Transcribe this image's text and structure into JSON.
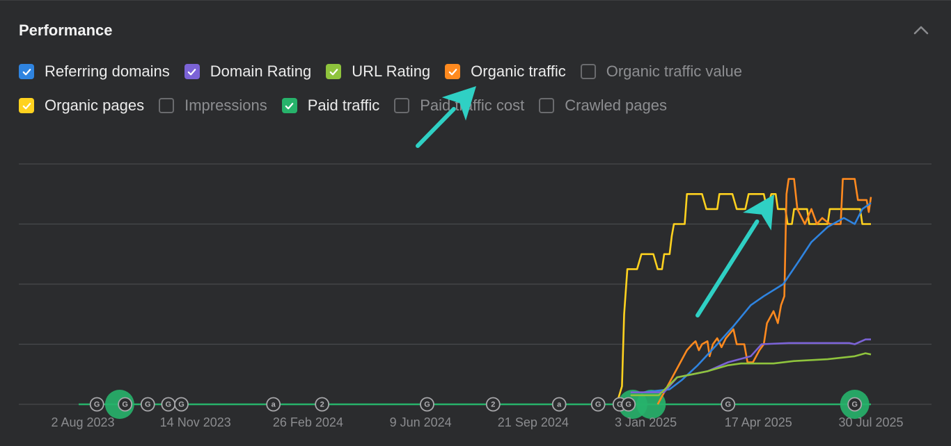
{
  "panel": {
    "title": "Performance"
  },
  "colors": {
    "referring_domains": "#2f84e0",
    "domain_rating": "#7b63d6",
    "url_rating": "#8fc43d",
    "organic_traffic": "#ff8a1f",
    "organic_pages": "#ffd21f",
    "paid_traffic": "#27b36b",
    "annotation_arrow": "#2fd0c4"
  },
  "checkboxes": [
    {
      "id": "referring-domains",
      "label": "Referring domains",
      "checked": true,
      "color": "#2f84e0"
    },
    {
      "id": "domain-rating",
      "label": "Domain Rating",
      "checked": true,
      "color": "#7b63d6"
    },
    {
      "id": "url-rating",
      "label": "URL Rating",
      "checked": true,
      "color": "#8fc43d"
    },
    {
      "id": "organic-traffic",
      "label": "Organic traffic",
      "checked": true,
      "color": "#ff8a1f"
    },
    {
      "id": "organic-traffic-value",
      "label": "Organic traffic value",
      "checked": false
    },
    {
      "id": "organic-pages",
      "label": "Organic pages",
      "checked": true,
      "color": "#ffd21f"
    },
    {
      "id": "impressions",
      "label": "Impressions",
      "checked": false
    },
    {
      "id": "paid-traffic",
      "label": "Paid traffic",
      "checked": true,
      "color": "#27b36b"
    },
    {
      "id": "paid-traffic-cost",
      "label": "Paid traffic cost",
      "checked": false
    },
    {
      "id": "crawled-pages",
      "label": "Crawled pages",
      "checked": false
    }
  ],
  "chart_data": {
    "type": "line",
    "grid": true,
    "x_ticks": [
      "2 Aug 2023",
      "14 Nov 2023",
      "26 Feb 2024",
      "9 Jun 2024",
      "21 Sep 2024",
      "3 Jan 2025",
      "17 Apr 2025",
      "30 Jul 2025"
    ],
    "x_tick_dates": [
      "2023-08-02",
      "2023-11-14",
      "2024-02-26",
      "2024-06-09",
      "2024-09-21",
      "2025-01-03",
      "2025-04-17",
      "2025-07-30"
    ],
    "y_range": [
      0,
      4
    ],
    "y_gridlines": [
      0,
      1,
      2,
      3,
      4
    ],
    "series": [
      {
        "name": "Organic pages",
        "color": "#ffd21f",
        "points": [
          [
            "2024-12-07",
            0
          ],
          [
            "2024-12-12",
            0.3
          ],
          [
            "2024-12-14",
            1.5
          ],
          [
            "2024-12-17",
            2.25
          ],
          [
            "2024-12-26",
            2.25
          ],
          [
            "2024-12-30",
            2.5
          ],
          [
            "2025-01-10",
            2.5
          ],
          [
            "2025-01-14",
            2.25
          ],
          [
            "2025-01-18",
            2.25
          ],
          [
            "2025-01-20",
            2.5
          ],
          [
            "2025-01-25",
            2.5
          ],
          [
            "2025-01-27",
            2.8
          ],
          [
            "2025-01-29",
            3.0
          ],
          [
            "2025-02-08",
            3.0
          ],
          [
            "2025-02-10",
            3.5
          ],
          [
            "2025-02-24",
            3.5
          ],
          [
            "2025-02-28",
            3.25
          ],
          [
            "2025-03-10",
            3.25
          ],
          [
            "2025-03-12",
            3.5
          ],
          [
            "2025-03-24",
            3.5
          ],
          [
            "2025-03-28",
            3.25
          ],
          [
            "2025-04-05",
            3.25
          ],
          [
            "2025-04-08",
            3.5
          ],
          [
            "2025-04-22",
            3.5
          ],
          [
            "2025-04-25",
            3.25
          ],
          [
            "2025-04-29",
            3.5
          ],
          [
            "2025-05-03",
            3.5
          ],
          [
            "2025-05-05",
            3.25
          ],
          [
            "2025-05-12",
            3.25
          ],
          [
            "2025-05-14",
            3.0
          ],
          [
            "2025-05-18",
            3.0
          ],
          [
            "2025-05-20",
            3.25
          ],
          [
            "2025-06-01",
            3.25
          ],
          [
            "2025-06-03",
            3.0
          ],
          [
            "2025-06-20",
            3.0
          ],
          [
            "2025-06-22",
            3.25
          ],
          [
            "2025-07-20",
            3.25
          ],
          [
            "2025-07-22",
            3.0
          ],
          [
            "2025-07-30",
            3.0
          ]
        ]
      },
      {
        "name": "Organic traffic",
        "color": "#ff8a1f",
        "points": [
          [
            "2025-01-14",
            0
          ],
          [
            "2025-01-20",
            0.2
          ],
          [
            "2025-02-01",
            0.6
          ],
          [
            "2025-02-10",
            0.9
          ],
          [
            "2025-02-15",
            1.0
          ],
          [
            "2025-02-18",
            1.05
          ],
          [
            "2025-02-21",
            0.9
          ],
          [
            "2025-02-24",
            1.0
          ],
          [
            "2025-03-01",
            1.05
          ],
          [
            "2025-03-03",
            0.8
          ],
          [
            "2025-03-06",
            1.0
          ],
          [
            "2025-03-10",
            1.1
          ],
          [
            "2025-03-14",
            0.95
          ],
          [
            "2025-03-18",
            1.1
          ],
          [
            "2025-03-25",
            1.25
          ],
          [
            "2025-03-28",
            1.0
          ],
          [
            "2025-04-04",
            1.0
          ],
          [
            "2025-04-07",
            0.7
          ],
          [
            "2025-04-12",
            0.7
          ],
          [
            "2025-04-15",
            0.8
          ],
          [
            "2025-04-18",
            0.9
          ],
          [
            "2025-04-22",
            1.0
          ],
          [
            "2025-04-25",
            1.35
          ],
          [
            "2025-05-01",
            1.55
          ],
          [
            "2025-05-05",
            1.35
          ],
          [
            "2025-05-08",
            1.65
          ],
          [
            "2025-05-11",
            1.8
          ],
          [
            "2025-05-13",
            3.5
          ],
          [
            "2025-05-15",
            3.75
          ],
          [
            "2025-05-20",
            3.75
          ],
          [
            "2025-05-23",
            3.25
          ],
          [
            "2025-05-30",
            3.0
          ],
          [
            "2025-06-05",
            3.25
          ],
          [
            "2025-06-10",
            3.0
          ],
          [
            "2025-06-15",
            3.1
          ],
          [
            "2025-06-22",
            3.0
          ],
          [
            "2025-07-02",
            3.0
          ],
          [
            "2025-07-04",
            3.75
          ],
          [
            "2025-07-15",
            3.75
          ],
          [
            "2025-07-18",
            3.4
          ],
          [
            "2025-07-26",
            3.4
          ],
          [
            "2025-07-28",
            3.2
          ],
          [
            "2025-07-30",
            3.45
          ]
        ]
      },
      {
        "name": "Referring domains",
        "color": "#2f84e0",
        "points": [
          [
            "2025-01-01",
            0.2
          ],
          [
            "2025-01-25",
            0.25
          ],
          [
            "2025-02-05",
            0.4
          ],
          [
            "2025-02-20",
            0.65
          ],
          [
            "2025-03-10",
            1.0
          ],
          [
            "2025-03-25",
            1.3
          ],
          [
            "2025-04-10",
            1.65
          ],
          [
            "2025-04-22",
            1.8
          ],
          [
            "2025-05-10",
            2.0
          ],
          [
            "2025-05-25",
            2.4
          ],
          [
            "2025-06-05",
            2.7
          ],
          [
            "2025-06-20",
            2.95
          ],
          [
            "2025-07-05",
            3.1
          ],
          [
            "2025-07-15",
            3.0
          ],
          [
            "2025-07-22",
            3.25
          ],
          [
            "2025-07-30",
            3.35
          ]
        ]
      },
      {
        "name": "Domain Rating",
        "color": "#7b63d6",
        "points": [
          [
            "2024-12-20",
            0.2
          ],
          [
            "2025-01-20",
            0.2
          ],
          [
            "2025-02-01",
            0.45
          ],
          [
            "2025-02-15",
            0.5
          ],
          [
            "2025-03-01",
            0.55
          ],
          [
            "2025-03-20",
            0.7
          ],
          [
            "2025-04-10",
            0.8
          ],
          [
            "2025-04-20",
            1.0
          ],
          [
            "2025-05-15",
            1.02
          ],
          [
            "2025-07-10",
            1.02
          ],
          [
            "2025-07-15",
            1.0
          ],
          [
            "2025-07-25",
            1.08
          ],
          [
            "2025-07-30",
            1.08
          ]
        ]
      },
      {
        "name": "URL Rating",
        "color": "#8fc43d",
        "points": [
          [
            "2024-12-20",
            0.15
          ],
          [
            "2025-01-15",
            0.15
          ],
          [
            "2025-02-01",
            0.45
          ],
          [
            "2025-02-15",
            0.5
          ],
          [
            "2025-03-01",
            0.55
          ],
          [
            "2025-03-20",
            0.65
          ],
          [
            "2025-04-01",
            0.68
          ],
          [
            "2025-05-01",
            0.68
          ],
          [
            "2025-05-20",
            0.72
          ],
          [
            "2025-06-20",
            0.75
          ],
          [
            "2025-07-15",
            0.8
          ],
          [
            "2025-07-25",
            0.85
          ],
          [
            "2025-07-30",
            0.83
          ]
        ]
      },
      {
        "name": "Paid traffic",
        "color": "#27b36b",
        "points": [
          [
            "2023-07-01",
            0
          ],
          [
            "2025-07-30",
            0
          ]
        ]
      }
    ],
    "event_markers": [
      {
        "date": "2023-08-15",
        "label": "G",
        "type": "google"
      },
      {
        "date": "2023-09-10",
        "label": "G",
        "type": "google"
      },
      {
        "date": "2023-10-01",
        "label": "G",
        "type": "google"
      },
      {
        "date": "2023-10-20",
        "label": "G",
        "type": "google"
      },
      {
        "date": "2023-11-01",
        "label": "G",
        "type": "google"
      },
      {
        "date": "2024-01-25",
        "label": "a",
        "type": "ahrefs"
      },
      {
        "date": "2024-03-10",
        "label": "2",
        "type": "group"
      },
      {
        "date": "2024-06-15",
        "label": "G",
        "type": "google"
      },
      {
        "date": "2024-08-15",
        "label": "2",
        "type": "group"
      },
      {
        "date": "2024-10-15",
        "label": "a",
        "type": "ahrefs"
      },
      {
        "date": "2024-11-20",
        "label": "G",
        "type": "google"
      },
      {
        "date": "2024-12-10",
        "label": "G",
        "type": "google"
      },
      {
        "date": "2024-12-18",
        "label": "G",
        "type": "google"
      },
      {
        "date": "2025-03-20",
        "label": "G",
        "type": "google"
      },
      {
        "date": "2025-07-15",
        "label": "G",
        "type": "google"
      }
    ],
    "paid_highlights": [
      {
        "date": "2023-09-05"
      },
      {
        "date": "2024-12-22"
      },
      {
        "date": "2025-01-08"
      },
      {
        "date": "2025-07-15"
      }
    ]
  }
}
